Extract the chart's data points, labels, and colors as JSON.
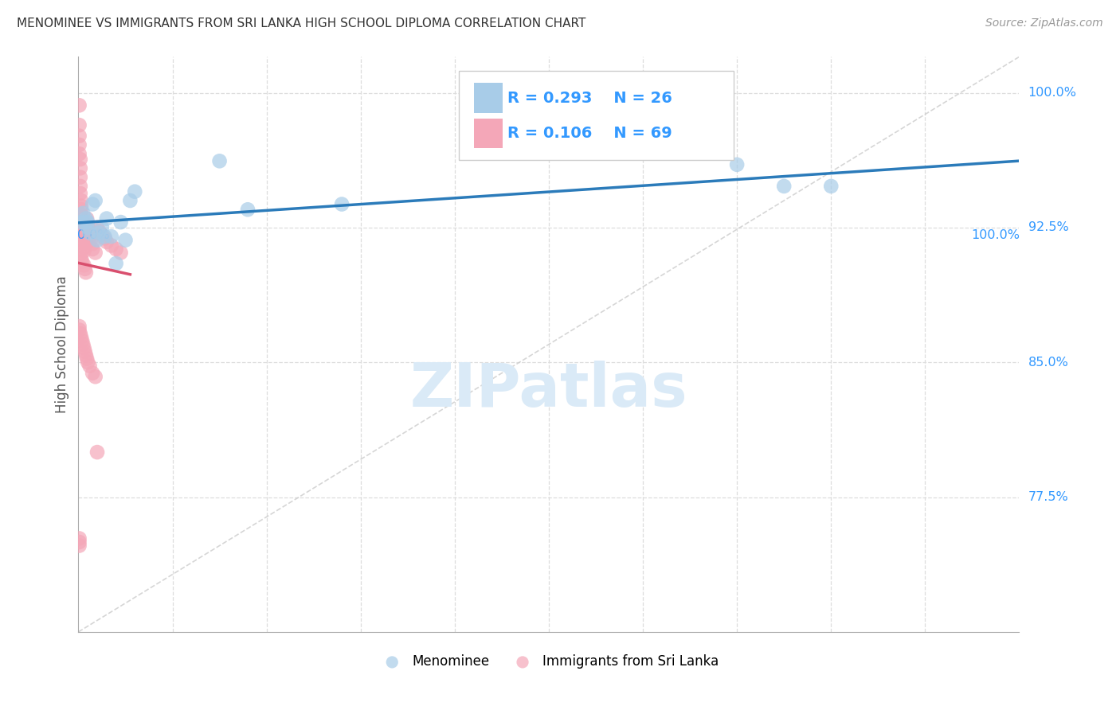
{
  "title": "MENOMINEE VS IMMIGRANTS FROM SRI LANKA HIGH SCHOOL DIPLOMA CORRELATION CHART",
  "source": "Source: ZipAtlas.com",
  "ylabel": "High School Diploma",
  "ylabel_right_ticks": [
    "100.0%",
    "92.5%",
    "85.0%",
    "77.5%"
  ],
  "ylabel_right_vals": [
    1.0,
    0.925,
    0.85,
    0.775
  ],
  "legend_blue_R": "R = 0.293",
  "legend_blue_N": "N = 26",
  "legend_pink_R": "R = 0.106",
  "legend_pink_N": "N = 69",
  "legend_label_blue": "Menominee",
  "legend_label_pink": "Immigrants from Sri Lanka",
  "blue_color": "#a8cce8",
  "pink_color": "#f4a7b8",
  "blue_line_color": "#2b7bba",
  "pink_line_color": "#d94f6e",
  "diagonal_color": "#cccccc",
  "watermark": "ZIPatlas",
  "watermark_color": "#daeaf7",
  "background_color": "#ffffff",
  "grid_color": "#dddddd",
  "title_color": "#333333",
  "right_axis_color": "#3399ff",
  "xlim": [
    0.0,
    1.0
  ],
  "ylim": [
    0.7,
    1.02
  ],
  "menominee_x": [
    0.003,
    0.005,
    0.007,
    0.008,
    0.01,
    0.01,
    0.012,
    0.015,
    0.018,
    0.02,
    0.025,
    0.028,
    0.03,
    0.035,
    0.04,
    0.05,
    0.055,
    0.06,
    0.15,
    0.18,
    0.28,
    0.7,
    0.75,
    0.8,
    0.045,
    0.022
  ],
  "menominee_y": [
    0.928,
    0.933,
    0.928,
    0.93,
    0.925,
    0.928,
    0.922,
    0.938,
    0.94,
    0.918,
    0.925,
    0.92,
    0.93,
    0.92,
    0.905,
    0.918,
    0.94,
    0.945,
    0.962,
    0.935,
    0.938,
    0.96,
    0.948,
    0.948,
    0.928,
    0.922
  ],
  "srilanka_x": [
    0.001,
    0.001,
    0.001,
    0.001,
    0.001,
    0.002,
    0.002,
    0.002,
    0.002,
    0.002,
    0.003,
    0.003,
    0.003,
    0.003,
    0.003,
    0.004,
    0.004,
    0.004,
    0.005,
    0.005,
    0.005,
    0.006,
    0.006,
    0.006,
    0.007,
    0.007,
    0.008,
    0.008,
    0.009,
    0.01,
    0.01,
    0.011,
    0.012,
    0.013,
    0.015,
    0.015,
    0.018,
    0.02,
    0.022,
    0.025,
    0.028,
    0.03,
    0.035,
    0.04,
    0.045,
    0.001,
    0.001,
    0.002,
    0.003,
    0.004,
    0.005,
    0.006,
    0.007,
    0.008,
    0.009,
    0.01,
    0.012,
    0.015,
    0.018,
    0.02,
    0.001,
    0.001,
    0.001,
    0.002,
    0.003,
    0.004,
    0.006,
    0.007,
    0.008
  ],
  "srilanka_y": [
    0.993,
    0.982,
    0.976,
    0.971,
    0.966,
    0.963,
    0.958,
    0.953,
    0.948,
    0.944,
    0.94,
    0.937,
    0.935,
    0.932,
    0.929,
    0.927,
    0.925,
    0.923,
    0.921,
    0.919,
    0.918,
    0.916,
    0.914,
    0.912,
    0.928,
    0.926,
    0.921,
    0.919,
    0.93,
    0.926,
    0.924,
    0.922,
    0.92,
    0.918,
    0.916,
    0.913,
    0.911,
    0.925,
    0.923,
    0.921,
    0.919,
    0.917,
    0.915,
    0.913,
    0.911,
    0.87,
    0.868,
    0.866,
    0.864,
    0.862,
    0.86,
    0.858,
    0.856,
    0.854,
    0.852,
    0.85,
    0.848,
    0.844,
    0.842,
    0.8,
    0.752,
    0.75,
    0.748,
    0.91,
    0.908,
    0.906,
    0.904,
    0.902,
    0.9
  ]
}
